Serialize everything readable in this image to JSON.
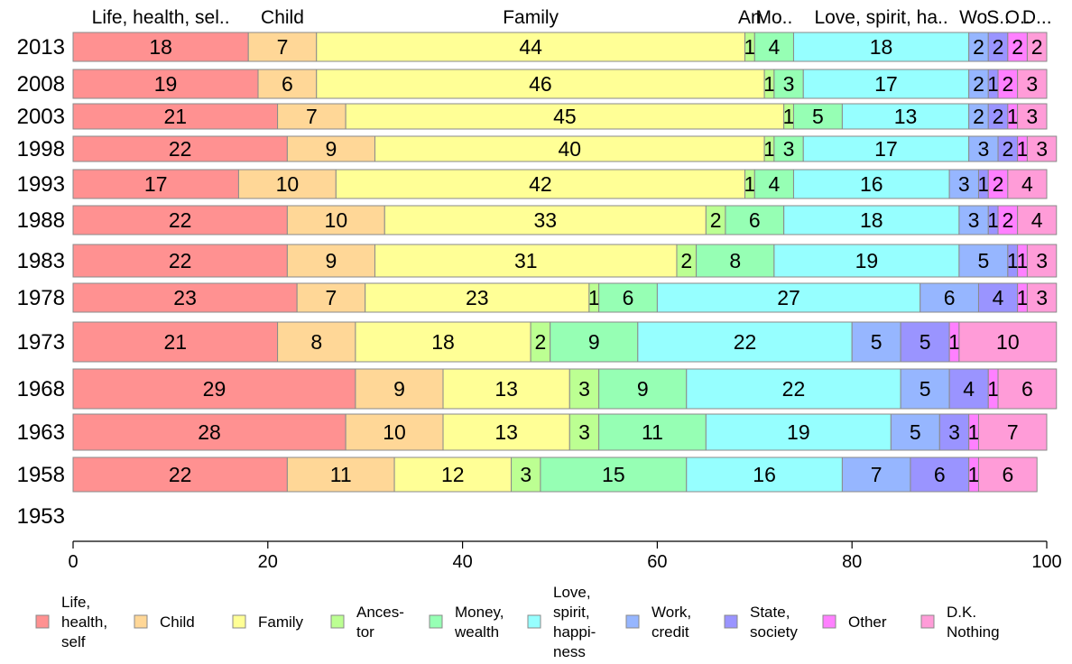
{
  "chart_data": {
    "type": "bar",
    "orientation": "horizontal",
    "stacked": true,
    "title": "",
    "xlabel": "",
    "ylabel": "",
    "xlim": [
      0,
      100
    ],
    "x_ticks": [
      "0",
      "20",
      "40",
      "60",
      "80",
      "100"
    ],
    "grid": false,
    "legend_position": "bottom",
    "top_labels": [
      "Life, health, sel..",
      "Child",
      "Family",
      "An",
      "Mo..",
      "Love, spirit, ha..",
      "Wo..",
      "S..",
      "O..",
      "D..."
    ],
    "categories": [
      "2013",
      "2008",
      "2003",
      "1998",
      "1993",
      "1988",
      "1983",
      "1978",
      "1973",
      "1968",
      "1963",
      "1958",
      "1953"
    ],
    "series": [
      {
        "name": "Life, health, self",
        "legend_lines": [
          "Life,",
          "health,",
          "self"
        ],
        "color": "#ff9191",
        "values": [
          18,
          19,
          21,
          22,
          17,
          22,
          22,
          23,
          21,
          29,
          28,
          22,
          null
        ]
      },
      {
        "name": "Child",
        "legend_lines": [
          "Child"
        ],
        "color": "#ffd797",
        "values": [
          7,
          6,
          7,
          9,
          10,
          10,
          9,
          7,
          8,
          9,
          10,
          11,
          null
        ]
      },
      {
        "name": "Family",
        "legend_lines": [
          "Family"
        ],
        "color": "#ffff96",
        "values": [
          44,
          46,
          45,
          40,
          42,
          33,
          31,
          23,
          18,
          13,
          13,
          12,
          null
        ]
      },
      {
        "name": "Ancestor",
        "legend_lines": [
          "Ances-",
          "tor"
        ],
        "color": "#bcff92",
        "values": [
          1,
          1,
          1,
          1,
          1,
          2,
          2,
          1,
          2,
          3,
          3,
          3,
          null
        ]
      },
      {
        "name": "Money, wealth",
        "legend_lines": [
          "Money,",
          "wealth"
        ],
        "color": "#96ffb4",
        "values": [
          4,
          3,
          5,
          3,
          4,
          6,
          8,
          6,
          9,
          9,
          11,
          15,
          null
        ]
      },
      {
        "name": "Love, spirit, happiness",
        "legend_lines": [
          "Love,",
          "spirit,",
          "happi-",
          "ness"
        ],
        "color": "#96ffff",
        "values": [
          18,
          17,
          13,
          17,
          16,
          18,
          19,
          27,
          22,
          22,
          19,
          16,
          null
        ]
      },
      {
        "name": "Work, credit",
        "legend_lines": [
          "Work,",
          "credit"
        ],
        "color": "#96b6ff",
        "values": [
          2,
          2,
          2,
          3,
          3,
          3,
          5,
          6,
          5,
          5,
          5,
          7,
          null
        ]
      },
      {
        "name": "State, society",
        "legend_lines": [
          "State,",
          "society"
        ],
        "color": "#9a94ff",
        "values": [
          2,
          1,
          2,
          2,
          1,
          1,
          1,
          4,
          5,
          4,
          3,
          6,
          null
        ]
      },
      {
        "name": "Other",
        "legend_lines": [
          "Other"
        ],
        "color": "#ff80ff",
        "values": [
          2,
          2,
          1,
          1,
          2,
          2,
          1,
          1,
          1,
          1,
          1,
          1,
          null
        ]
      },
      {
        "name": "D.K. Nothing",
        "legend_lines": [
          "D.K.",
          "Nothing"
        ],
        "color": "#ff9cd8",
        "values": [
          2,
          3,
          3,
          3,
          4,
          4,
          3,
          3,
          10,
          6,
          7,
          6,
          null
        ]
      }
    ]
  }
}
